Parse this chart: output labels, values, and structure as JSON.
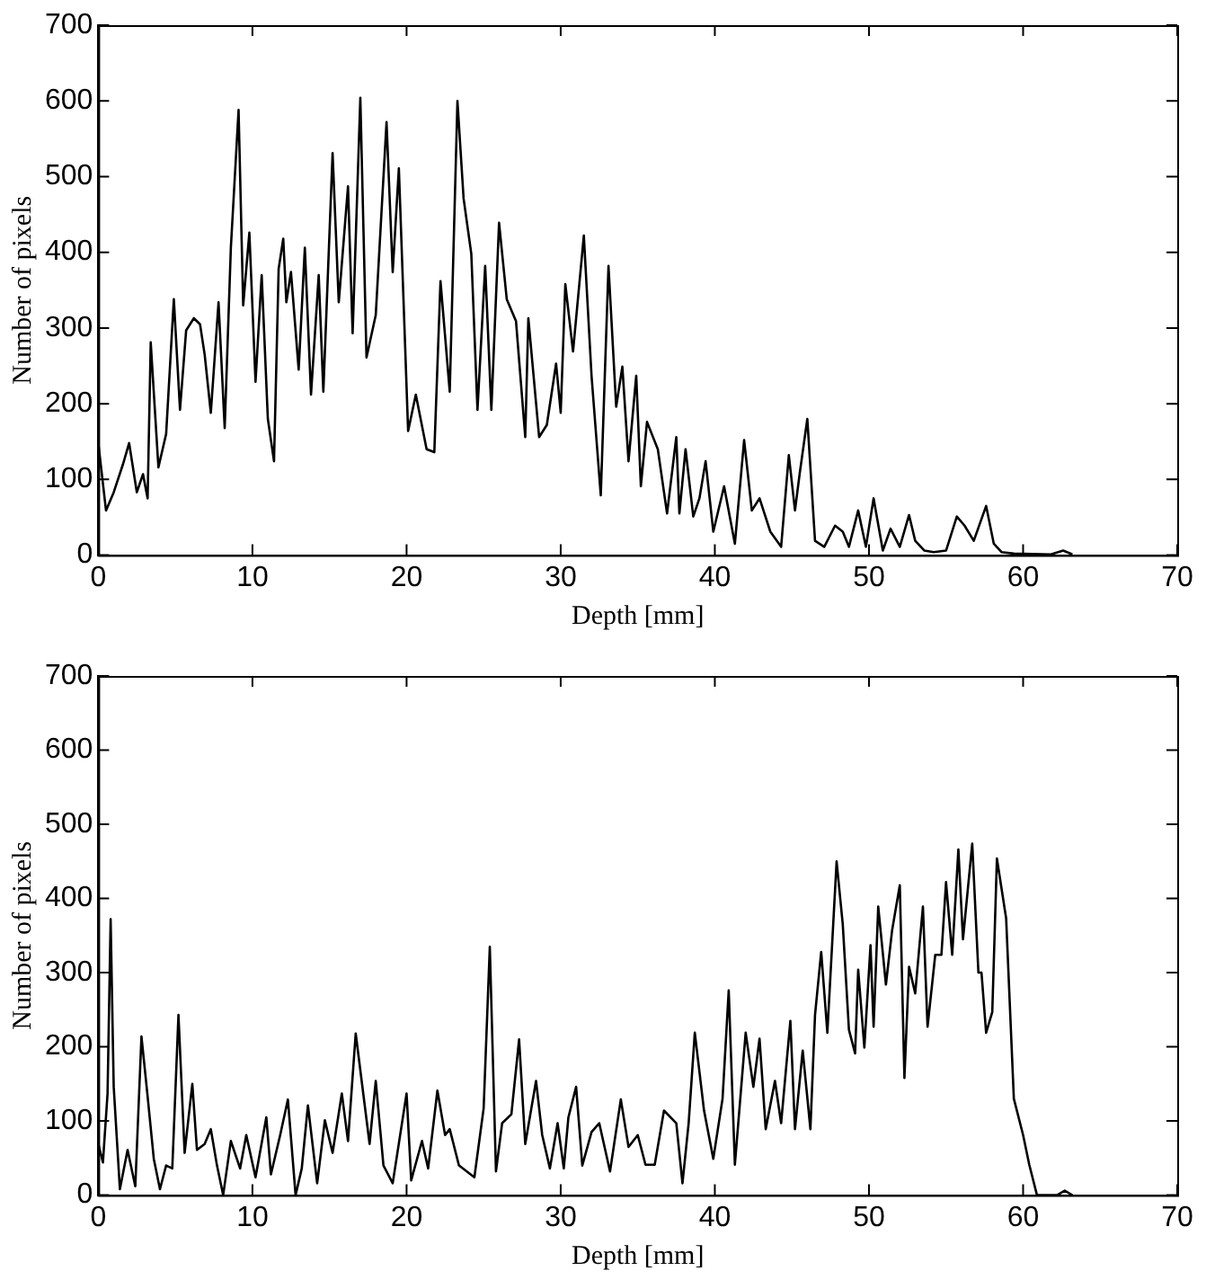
{
  "chart_data": [
    {
      "type": "line",
      "xlabel": "Depth [mm]",
      "ylabel": "Number of pixels",
      "xlim": [
        0,
        70
      ],
      "xticks": [
        0,
        10,
        20,
        30,
        40,
        50,
        60,
        70
      ],
      "ylim": [
        0,
        700
      ],
      "yticks": [
        0,
        100,
        200,
        300,
        400,
        500,
        600,
        700
      ],
      "marker": "none",
      "x": [
        0,
        0.5,
        1.0,
        1.6,
        2.0,
        2.5,
        2.9,
        3.2,
        3.4,
        3.9,
        4.4,
        4.9,
        5.3,
        5.7,
        6.2,
        6.6,
        6.9,
        7.3,
        7.8,
        8.2,
        8.6,
        9.1,
        9.4,
        9.8,
        10.2,
        10.6,
        11.0,
        11.4,
        11.7,
        12.0,
        12.2,
        12.5,
        13.0,
        13.4,
        13.8,
        14.3,
        14.6,
        15.2,
        15.6,
        16.2,
        16.5,
        17.0,
        17.4,
        18.0,
        18.7,
        19.1,
        19.5,
        20.1,
        20.6,
        21.3,
        21.8,
        22.2,
        22.8,
        23.3,
        23.7,
        24.2,
        24.6,
        25.1,
        25.5,
        26.0,
        26.5,
        27.1,
        27.7,
        27.9,
        28.6,
        29.1,
        29.7,
        30.0,
        30.3,
        30.8,
        31.5,
        32.0,
        32.6,
        33.1,
        33.6,
        34.0,
        34.4,
        34.9,
        35.2,
        35.6,
        36.3,
        36.9,
        37.5,
        37.7,
        38.1,
        38.6,
        39.0,
        39.4,
        39.9,
        40.6,
        41.3,
        41.9,
        42.4,
        42.9,
        43.6,
        44.3,
        44.8,
        45.2,
        45.5,
        46.0,
        46.5,
        47.1,
        47.8,
        48.3,
        48.7,
        49.3,
        49.8,
        50.3,
        50.9,
        51.4,
        52.0,
        52.6,
        53.0,
        53.6,
        54.2,
        55.0,
        55.7,
        56.2,
        56.8,
        57.6,
        58.1,
        58.6,
        59.4,
        61.8,
        62.6,
        63.2
      ],
      "series": [
        {
          "color": "#000000",
          "values": [
            148,
            59,
            83,
            120,
            148,
            83,
            107,
            75,
            281,
            116,
            160,
            338,
            192,
            297,
            313,
            305,
            265,
            188,
            334,
            168,
            406,
            588,
            330,
            426,
            229,
            370,
            180,
            124,
            378,
            418,
            334,
            374,
            245,
            406,
            212,
            370,
            216,
            531,
            334,
            487,
            293,
            604,
            261,
            317,
            572,
            374,
            511,
            164,
            212,
            140,
            136,
            362,
            216,
            600,
            471,
            398,
            192,
            382,
            192,
            439,
            338,
            309,
            156,
            313,
            156,
            172,
            253,
            188,
            358,
            269,
            422,
            237,
            79,
            382,
            196,
            249,
            124,
            237,
            91,
            176,
            140,
            55,
            156,
            55,
            140,
            51,
            75,
            124,
            31,
            91,
            15,
            152,
            59,
            75,
            31,
            11,
            132,
            59,
            107,
            180,
            19,
            11,
            39,
            31,
            11,
            59,
            11,
            75,
            6,
            35,
            11,
            53,
            19,
            6,
            4,
            6,
            51,
            39,
            19,
            65,
            15,
            4,
            2,
            1,
            6,
            1
          ]
        }
      ]
    },
    {
      "type": "line",
      "xlabel": "Depth [mm]",
      "ylabel": "Number of pixels",
      "xlim": [
        0,
        70
      ],
      "xticks": [
        0,
        10,
        20,
        30,
        40,
        50,
        60,
        70
      ],
      "ylim": [
        0,
        700
      ],
      "yticks": [
        0,
        100,
        200,
        300,
        400,
        500,
        600,
        700
      ],
      "marker": "none",
      "x": [
        0,
        0.3,
        0.6,
        0.8,
        1.0,
        1.4,
        1.9,
        2.4,
        2.8,
        3.2,
        3.6,
        4.0,
        4.4,
        4.8,
        5.2,
        5.6,
        6.1,
        6.4,
        6.9,
        7.3,
        7.7,
        8.1,
        8.6,
        9.2,
        9.6,
        10.2,
        10.9,
        11.2,
        11.8,
        12.3,
        12.8,
        13.2,
        13.6,
        14.2,
        14.7,
        15.2,
        15.8,
        16.2,
        16.7,
        17.6,
        18.0,
        18.5,
        19.1,
        20.0,
        20.3,
        21.0,
        21.4,
        22.0,
        22.5,
        22.8,
        23.4,
        24.4,
        25.0,
        25.4,
        25.8,
        26.2,
        26.8,
        27.3,
        27.7,
        28.4,
        28.8,
        29.3,
        29.8,
        30.2,
        30.5,
        31.0,
        31.4,
        32.0,
        32.5,
        33.2,
        33.9,
        34.4,
        35.0,
        35.5,
        36.1,
        36.7,
        37.5,
        37.9,
        38.3,
        38.7,
        39.3,
        39.9,
        40.5,
        40.9,
        41.3,
        42.0,
        42.5,
        42.9,
        43.3,
        43.9,
        44.3,
        44.9,
        45.2,
        45.7,
        46.2,
        46.5,
        46.9,
        47.3,
        47.9,
        48.3,
        48.7,
        49.1,
        49.3,
        49.7,
        50.1,
        50.3,
        50.6,
        51.1,
        51.5,
        52.0,
        52.3,
        52.6,
        53.0,
        53.5,
        53.8,
        54.3,
        54.7,
        55.0,
        55.4,
        55.8,
        56.1,
        56.7,
        57.1,
        57.3,
        57.6,
        58.0,
        58.3,
        58.9,
        59.4,
        60.0,
        60.4,
        60.9,
        62.2,
        62.7,
        63.2
      ],
      "series": [
        {
          "color": "#000000",
          "values": [
            69,
            44,
            137,
            372,
            146,
            8,
            61,
            12,
            214,
            133,
            49,
            8,
            40,
            36,
            243,
            57,
            150,
            61,
            69,
            89,
            40,
            0,
            73,
            36,
            81,
            24,
            105,
            28,
            81,
            129,
            0,
            36,
            121,
            16,
            101,
            57,
            137,
            73,
            218,
            69,
            154,
            40,
            16,
            137,
            20,
            73,
            36,
            141,
            81,
            89,
            40,
            24,
            117,
            335,
            32,
            97,
            109,
            210,
            69,
            154,
            81,
            36,
            97,
            36,
            105,
            146,
            40,
            85,
            97,
            32,
            129,
            65,
            81,
            41,
            41,
            114,
            97,
            16,
            97,
            219,
            114,
            49,
            130,
            276,
            41,
            219,
            146,
            211,
            89,
            154,
            97,
            235,
            89,
            195,
            89,
            243,
            328,
            219,
            450,
            365,
            223,
            191,
            304,
            199,
            337,
            227,
            389,
            284,
            357,
            418,
            158,
            308,
            272,
            389,
            227,
            324,
            324,
            422,
            324,
            466,
            345,
            474,
            300,
            300,
            219,
            247,
            454,
            373,
            130,
            81,
            41,
            0,
            0,
            6,
            0
          ]
        }
      ]
    }
  ]
}
